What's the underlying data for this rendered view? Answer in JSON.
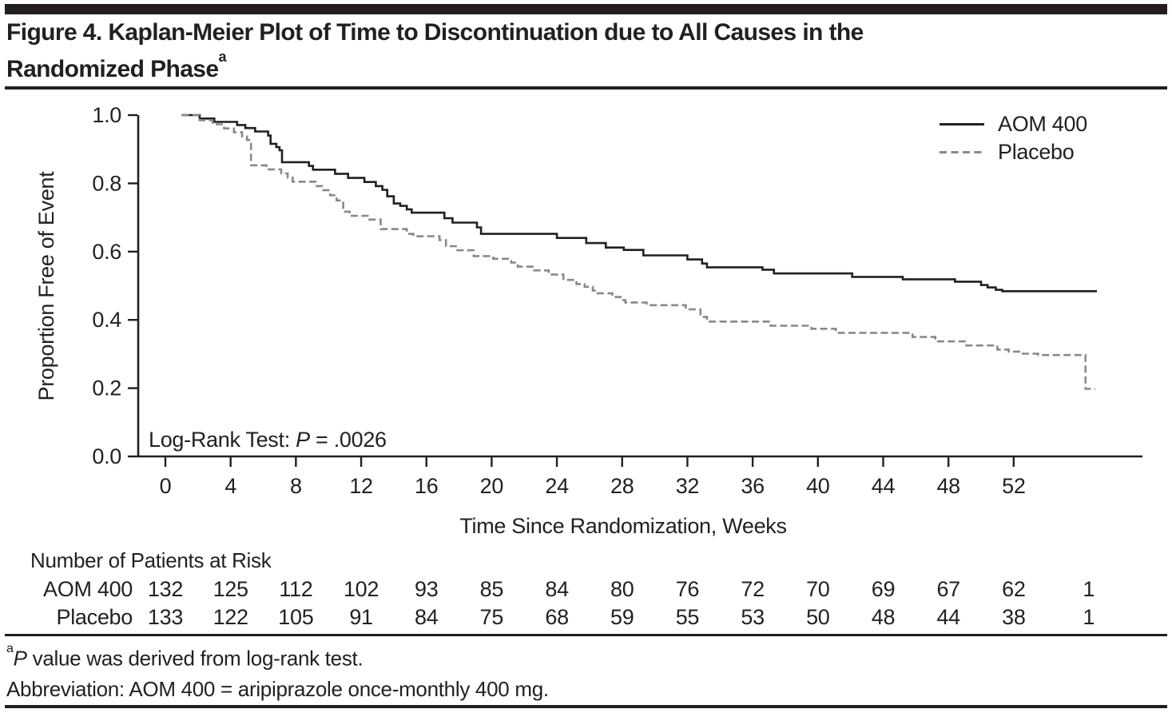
{
  "figure": {
    "title_lines": [
      "Figure 4. Kaplan-Meier Plot of Time to Discontinuation due to All Causes in the",
      "Randomized Phase"
    ],
    "title_superscript": "a"
  },
  "chart_data": {
    "type": "line",
    "subtype": "kaplan_meier_step",
    "title": "Figure 4. Kaplan-Meier Plot of Time to Discontinuation due to All Causes in the Randomized Phase",
    "xlabel": "Time Since Randomization, Weeks",
    "ylabel": "Proportion Free of Event",
    "xlim": [
      0,
      60
    ],
    "ylim": [
      0.0,
      1.0
    ],
    "grid": "off",
    "legend_position": "top-right",
    "x_ticks": [
      0,
      4,
      8,
      12,
      16,
      20,
      24,
      28,
      32,
      36,
      40,
      44,
      48,
      52
    ],
    "y_ticks": [
      "0.0",
      "0.2",
      "0.4",
      "0.6",
      "0.8",
      "1.0"
    ],
    "annotation": {
      "prefix": "Log-Rank Test: ",
      "italic": "P",
      "rest": " = .0026"
    },
    "axis_color": "#231f20",
    "series": [
      {
        "name": "AOM 400",
        "line_style": "solid",
        "color": "#231f20",
        "steps": [
          [
            1.0,
            1.0
          ],
          [
            2.1,
            0.99
          ],
          [
            3.0,
            0.98
          ],
          [
            4.4,
            0.971
          ],
          [
            4.9,
            0.962
          ],
          [
            5.5,
            0.952
          ],
          [
            6.3,
            0.94
          ],
          [
            6.45,
            0.916
          ],
          [
            6.8,
            0.906
          ],
          [
            7.0,
            0.897
          ],
          [
            7.15,
            0.862
          ],
          [
            8.8,
            0.851
          ],
          [
            9.05,
            0.84
          ],
          [
            10.4,
            0.828
          ],
          [
            11.2,
            0.816
          ],
          [
            12.2,
            0.804
          ],
          [
            12.9,
            0.792
          ],
          [
            13.3,
            0.781
          ],
          [
            13.6,
            0.762
          ],
          [
            14.0,
            0.741
          ],
          [
            14.4,
            0.734
          ],
          [
            14.8,
            0.724
          ],
          [
            15.1,
            0.714
          ],
          [
            17.1,
            0.698
          ],
          [
            17.6,
            0.685
          ],
          [
            19.1,
            0.671
          ],
          [
            19.35,
            0.652
          ],
          [
            24.0,
            0.64
          ],
          [
            25.8,
            0.625
          ],
          [
            27.0,
            0.612
          ],
          [
            28.1,
            0.605
          ],
          [
            29.3,
            0.589
          ],
          [
            32.0,
            0.577
          ],
          [
            32.9,
            0.565
          ],
          [
            33.2,
            0.554
          ],
          [
            36.6,
            0.547
          ],
          [
            37.3,
            0.536
          ],
          [
            42.1,
            0.526
          ],
          [
            45.2,
            0.519
          ],
          [
            48.4,
            0.512
          ],
          [
            50.0,
            0.502
          ],
          [
            50.4,
            0.495
          ],
          [
            50.9,
            0.488
          ],
          [
            51.3,
            0.484
          ],
          [
            57.1,
            0.484
          ]
        ]
      },
      {
        "name": "Placebo",
        "line_style": "dashed",
        "color": "#87898c",
        "steps": [
          [
            1.0,
            1.0
          ],
          [
            2.1,
            0.985
          ],
          [
            2.9,
            0.973
          ],
          [
            3.6,
            0.961
          ],
          [
            4.2,
            0.95
          ],
          [
            4.7,
            0.938
          ],
          [
            5.0,
            0.927
          ],
          [
            5.25,
            0.853
          ],
          [
            6.2,
            0.841
          ],
          [
            7.1,
            0.829
          ],
          [
            7.5,
            0.817
          ],
          [
            7.8,
            0.805
          ],
          [
            9.2,
            0.792
          ],
          [
            9.6,
            0.78
          ],
          [
            10.1,
            0.765
          ],
          [
            10.5,
            0.75
          ],
          [
            10.9,
            0.717
          ],
          [
            11.3,
            0.705
          ],
          [
            12.4,
            0.694
          ],
          [
            13.2,
            0.666
          ],
          [
            14.8,
            0.652
          ],
          [
            15.2,
            0.645
          ],
          [
            16.8,
            0.634
          ],
          [
            17.2,
            0.616
          ],
          [
            17.9,
            0.604
          ],
          [
            18.9,
            0.587
          ],
          [
            20.1,
            0.579
          ],
          [
            21.2,
            0.568
          ],
          [
            21.6,
            0.556
          ],
          [
            22.5,
            0.545
          ],
          [
            23.5,
            0.533
          ],
          [
            24.4,
            0.517
          ],
          [
            25.2,
            0.505
          ],
          [
            25.7,
            0.497
          ],
          [
            26.2,
            0.486
          ],
          [
            26.5,
            0.478
          ],
          [
            27.4,
            0.467
          ],
          [
            27.9,
            0.458
          ],
          [
            28.2,
            0.451
          ],
          [
            29.5,
            0.443
          ],
          [
            31.9,
            0.431
          ],
          [
            32.8,
            0.409
          ],
          [
            33.2,
            0.395
          ],
          [
            37.1,
            0.383
          ],
          [
            39.6,
            0.374
          ],
          [
            41.1,
            0.362
          ],
          [
            45.8,
            0.35
          ],
          [
            47.2,
            0.337
          ],
          [
            49.0,
            0.325
          ],
          [
            51.0,
            0.313
          ],
          [
            51.7,
            0.307
          ],
          [
            52.4,
            0.301
          ],
          [
            53.5,
            0.297
          ],
          [
            56.4,
            0.198
          ],
          [
            57.0,
            0.198
          ]
        ]
      }
    ]
  },
  "risk_table": {
    "heading": "Number of Patients at Risk",
    "column_weeks": [
      0,
      4,
      8,
      12,
      16,
      20,
      24,
      28,
      32,
      36,
      40,
      44,
      48,
      52,
      56.6
    ],
    "rows": [
      {
        "label": "AOM 400",
        "values": [
          132,
          125,
          112,
          102,
          93,
          85,
          84,
          80,
          76,
          72,
          70,
          69,
          67,
          62,
          1
        ]
      },
      {
        "label": "Placebo",
        "values": [
          133,
          122,
          105,
          91,
          84,
          75,
          68,
          59,
          55,
          53,
          50,
          48,
          44,
          38,
          1
        ]
      }
    ]
  },
  "footnotes": {
    "p_sup": "a",
    "p_italic": "P",
    "p_rest": " value was derived from log-rank test.",
    "abbreviation": "Abbreviation: AOM 400 = aripiprazole once-monthly 400 mg."
  }
}
